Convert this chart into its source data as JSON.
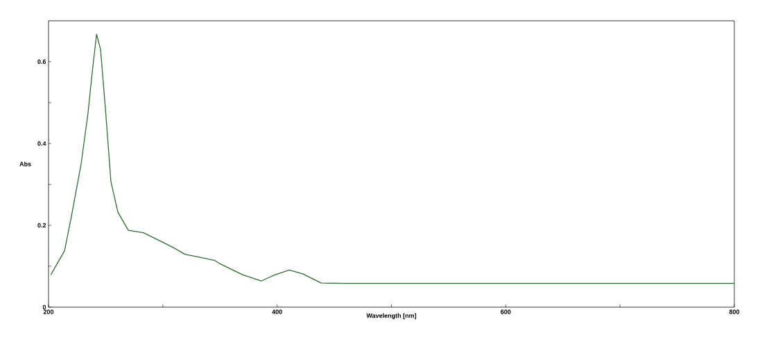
{
  "chart_data": {
    "type": "line",
    "xlabel": "Wavelength [nm]",
    "ylabel": "Abs",
    "xlim": [
      200,
      800
    ],
    "ylim": [
      0,
      0.7
    ],
    "xticks": [
      200,
      {
        "value": 300,
        "label": null
      },
      400,
      {
        "value": 500,
        "label": null
      },
      600,
      {
        "value": 700,
        "label": null
      },
      800
    ],
    "yticks": [
      0,
      {
        "value": 0.1,
        "label": null
      },
      0.2,
      {
        "value": 0.3,
        "label": null
      },
      0.4,
      {
        "value": 0.5,
        "label": null
      },
      0.6
    ],
    "grid": false,
    "line_style": "solid",
    "series": [
      {
        "color": "#2e6b2e",
        "x": [
          202,
          214,
          220,
          228.5,
          234.5,
          237.6,
          242,
          245.5,
          249.8,
          254.6,
          260.7,
          269.8,
          283,
          299,
          309,
          319.5,
          329,
          345.6,
          350,
          370,
          386,
          398,
          410.6,
          422.7,
          438.5,
          460,
          600,
          800
        ],
        "values": [
          0.079,
          0.138,
          0.222,
          0.35,
          0.474,
          0.558,
          0.667,
          0.63,
          0.484,
          0.306,
          0.232,
          0.188,
          0.182,
          0.16,
          0.146,
          0.129,
          0.124,
          0.114,
          0.106,
          0.079,
          0.064,
          0.079,
          0.091,
          0.081,
          0.059,
          0.058,
          0.058,
          0.058
        ]
      }
    ]
  }
}
